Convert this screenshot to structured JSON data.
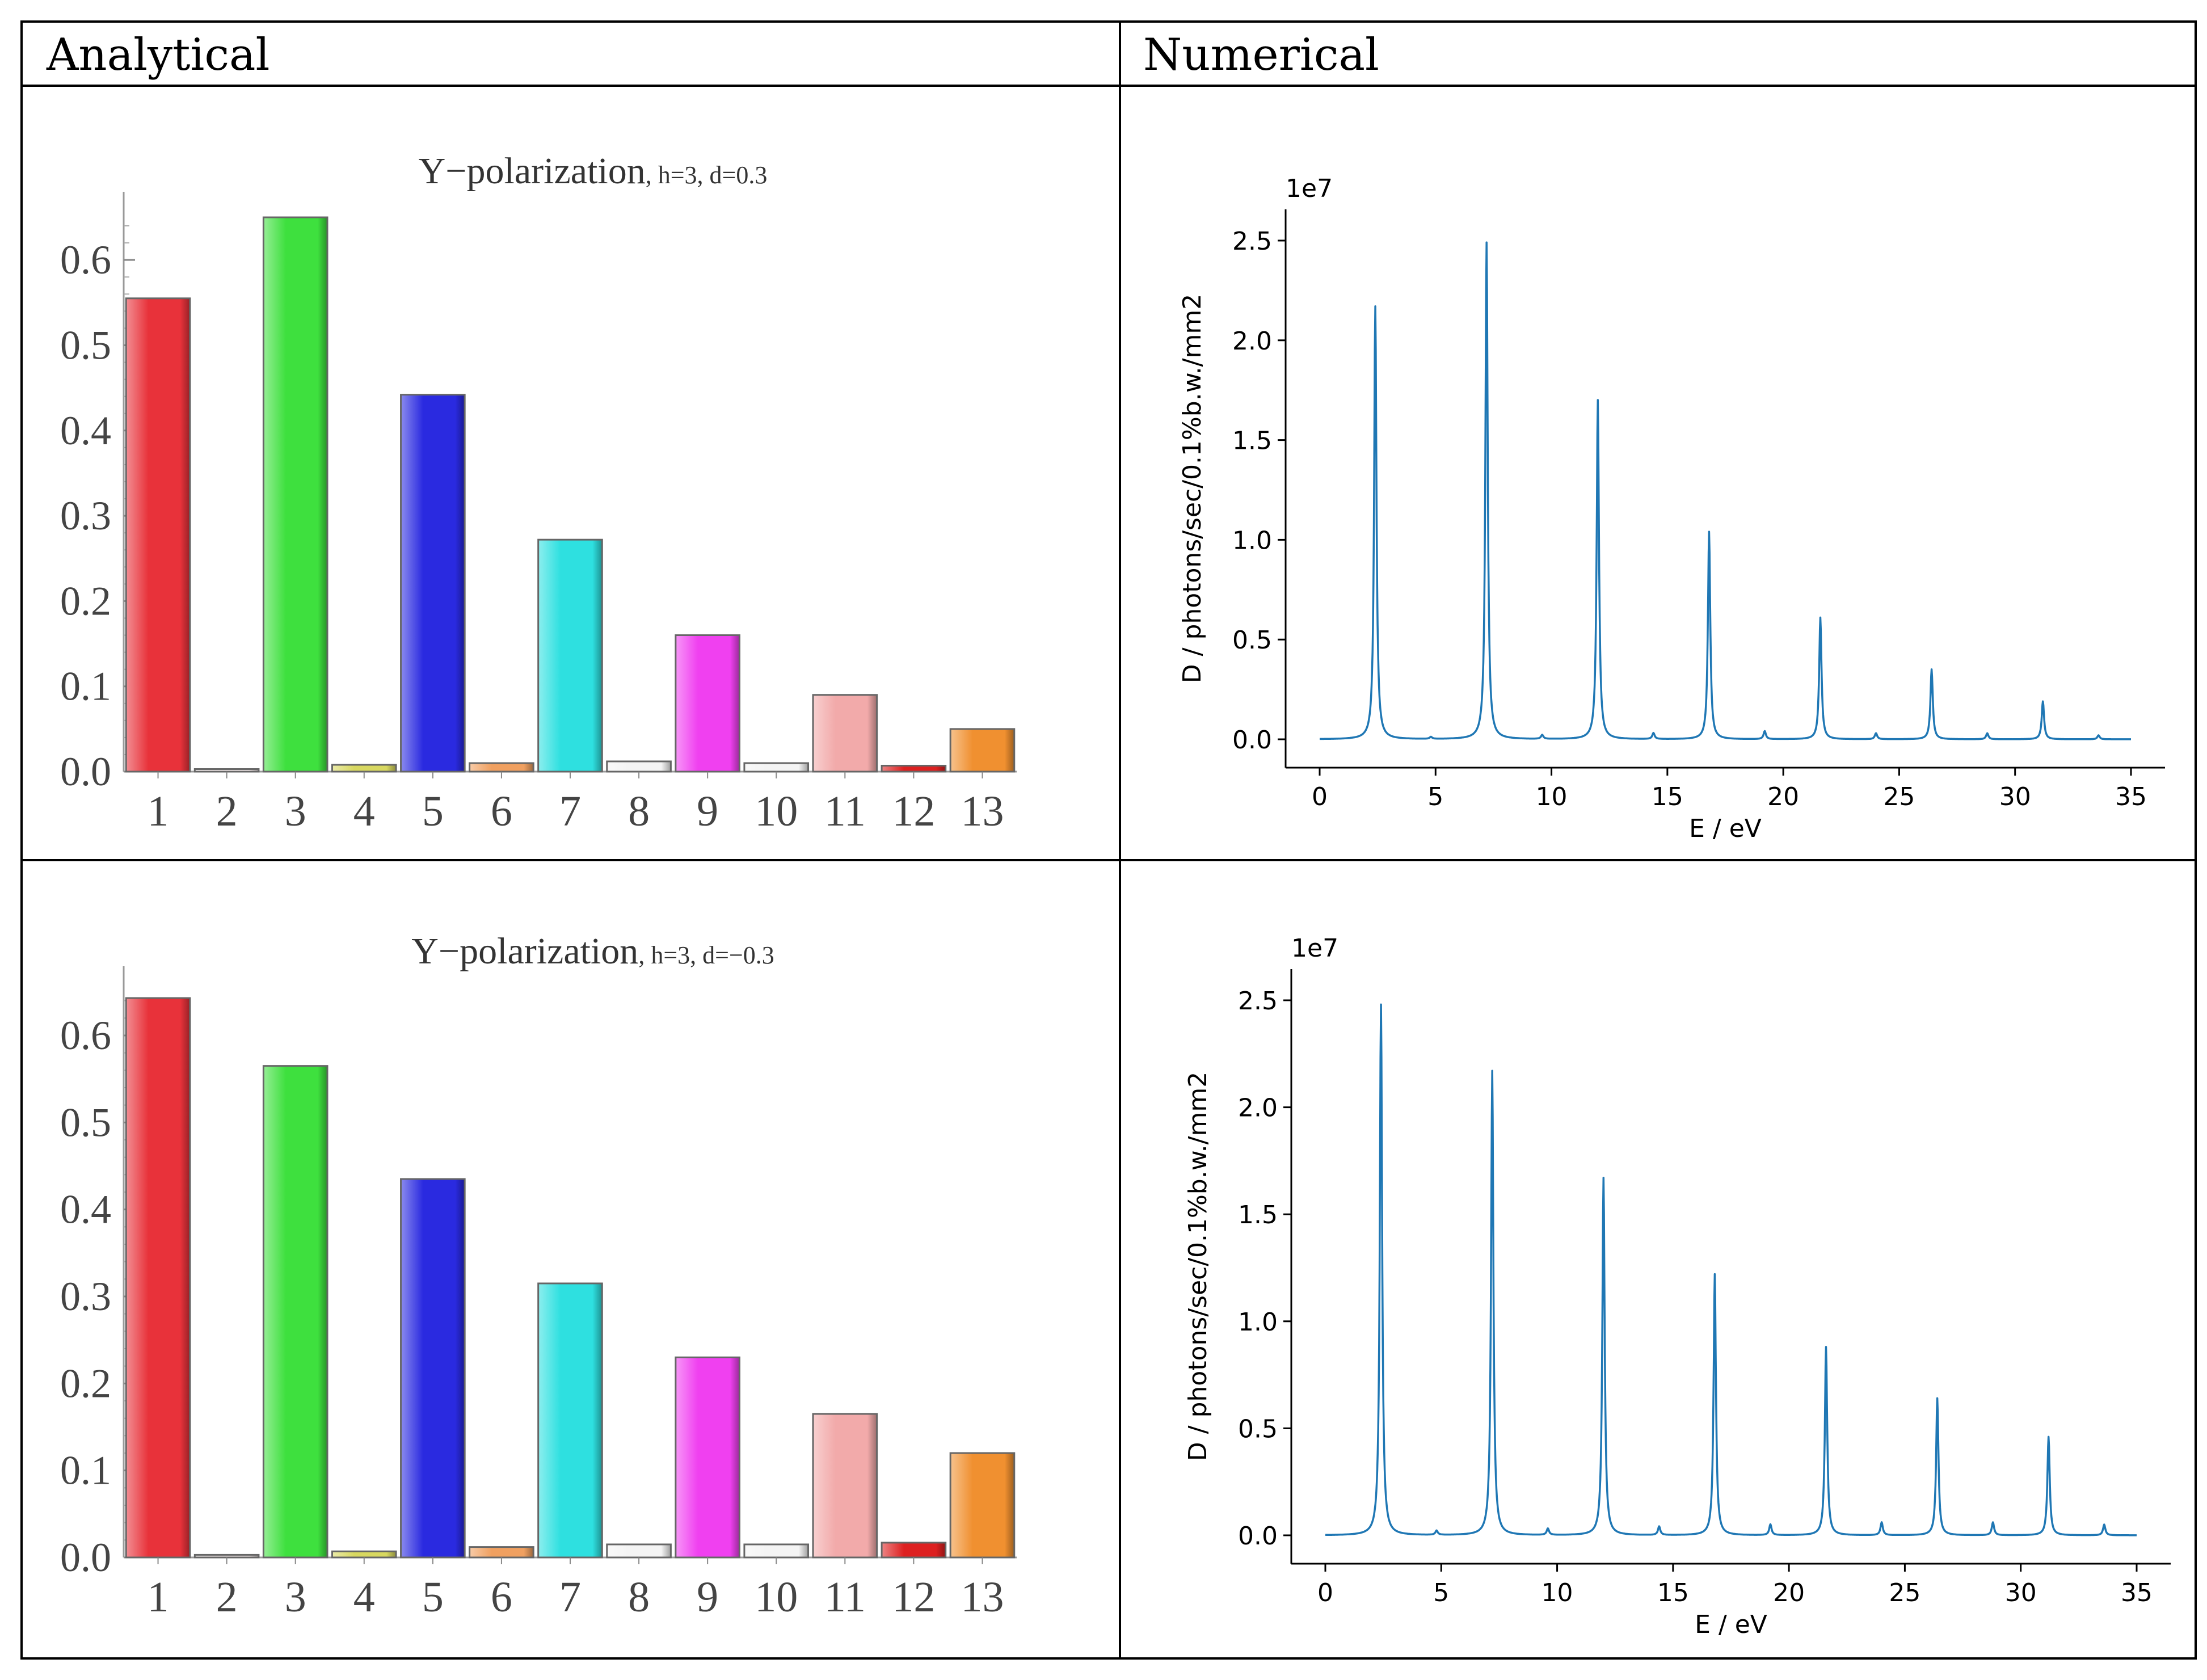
{
  "table": {
    "headers": [
      "Analytical",
      "Numerical"
    ]
  },
  "colors": {
    "bar_palette": [
      "#e8323a",
      "#f4eaea",
      "#3ee03e",
      "#d8d860",
      "#2a2ae0",
      "#f0a060",
      "#2ee0e0",
      "#f4f4f4",
      "#f040f0",
      "#f4f4f4",
      "#f2aaaa",
      "#dd2020",
      "#f09030"
    ],
    "line": "#1f77b4"
  },
  "chart_data": [
    {
      "id": "analytical-top",
      "type": "bar",
      "title_main": "Y−polarization",
      "title_params": ", h=3, d=0.3",
      "categories": [
        "1",
        "2",
        "3",
        "4",
        "5",
        "6",
        "7",
        "8",
        "9",
        "10",
        "11",
        "12",
        "13"
      ],
      "values": [
        0.555,
        0.003,
        0.65,
        0.008,
        0.442,
        0.01,
        0.272,
        0.012,
        0.16,
        0.01,
        0.09,
        0.007,
        0.05
      ],
      "ylim": [
        0,
        0.66
      ],
      "yticks": [
        "0.0",
        "0.1",
        "0.2",
        "0.3",
        "0.4",
        "0.5",
        "0.6"
      ]
    },
    {
      "id": "numerical-top",
      "type": "line",
      "xlabel": "E / eV",
      "ylabel": "D / photons/sec/0.1%b.w./mm2",
      "offset_label": "1e7",
      "xlim": [
        0,
        35
      ],
      "ylim": [
        0,
        2.5
      ],
      "xticks": [
        "0",
        "5",
        "10",
        "15",
        "20",
        "25",
        "30",
        "35"
      ],
      "yticks": [
        "0.0",
        "0.5",
        "1.0",
        "1.5",
        "2.0",
        "2.5"
      ],
      "peaks": [
        {
          "e": 2.4,
          "d": 2.17
        },
        {
          "e": 4.8,
          "d": 0.01
        },
        {
          "e": 7.2,
          "d": 2.49
        },
        {
          "e": 9.6,
          "d": 0.02
        },
        {
          "e": 12.0,
          "d": 1.7
        },
        {
          "e": 14.4,
          "d": 0.03
        },
        {
          "e": 16.8,
          "d": 1.04
        },
        {
          "e": 19.2,
          "d": 0.04
        },
        {
          "e": 21.6,
          "d": 0.61
        },
        {
          "e": 24.0,
          "d": 0.03
        },
        {
          "e": 26.4,
          "d": 0.35
        },
        {
          "e": 28.8,
          "d": 0.03
        },
        {
          "e": 31.2,
          "d": 0.19
        },
        {
          "e": 33.6,
          "d": 0.02
        }
      ]
    },
    {
      "id": "analytical-bottom",
      "type": "bar",
      "title_main": "Y−polarization",
      "title_params": ", h=3, d=−0.3",
      "categories": [
        "1",
        "2",
        "3",
        "4",
        "5",
        "6",
        "7",
        "8",
        "9",
        "10",
        "11",
        "12",
        "13"
      ],
      "values": [
        0.643,
        0.003,
        0.565,
        0.007,
        0.435,
        0.012,
        0.315,
        0.015,
        0.23,
        0.015,
        0.165,
        0.017,
        0.12
      ],
      "ylim": [
        0,
        0.66
      ],
      "yticks": [
        "0.0",
        "0.1",
        "0.2",
        "0.3",
        "0.4",
        "0.5",
        "0.6"
      ]
    },
    {
      "id": "numerical-bottom",
      "type": "line",
      "xlabel": "E / eV",
      "ylabel": "D / photons/sec/0.1%b.w./mm2",
      "offset_label": "1e7",
      "xlim": [
        0,
        35
      ],
      "ylim": [
        0,
        2.5
      ],
      "xticks": [
        "0",
        "5",
        "10",
        "15",
        "20",
        "25",
        "30",
        "35"
      ],
      "yticks": [
        "0.0",
        "0.5",
        "1.0",
        "1.5",
        "2.0",
        "2.5"
      ],
      "peaks": [
        {
          "e": 2.4,
          "d": 2.48
        },
        {
          "e": 4.8,
          "d": 0.02
        },
        {
          "e": 7.2,
          "d": 2.17
        },
        {
          "e": 9.6,
          "d": 0.03
        },
        {
          "e": 12.0,
          "d": 1.67
        },
        {
          "e": 14.4,
          "d": 0.04
        },
        {
          "e": 16.8,
          "d": 1.22
        },
        {
          "e": 19.2,
          "d": 0.05
        },
        {
          "e": 21.6,
          "d": 0.88
        },
        {
          "e": 24.0,
          "d": 0.06
        },
        {
          "e": 26.4,
          "d": 0.64
        },
        {
          "e": 28.8,
          "d": 0.06
        },
        {
          "e": 31.2,
          "d": 0.46
        },
        {
          "e": 33.6,
          "d": 0.05
        }
      ]
    }
  ]
}
